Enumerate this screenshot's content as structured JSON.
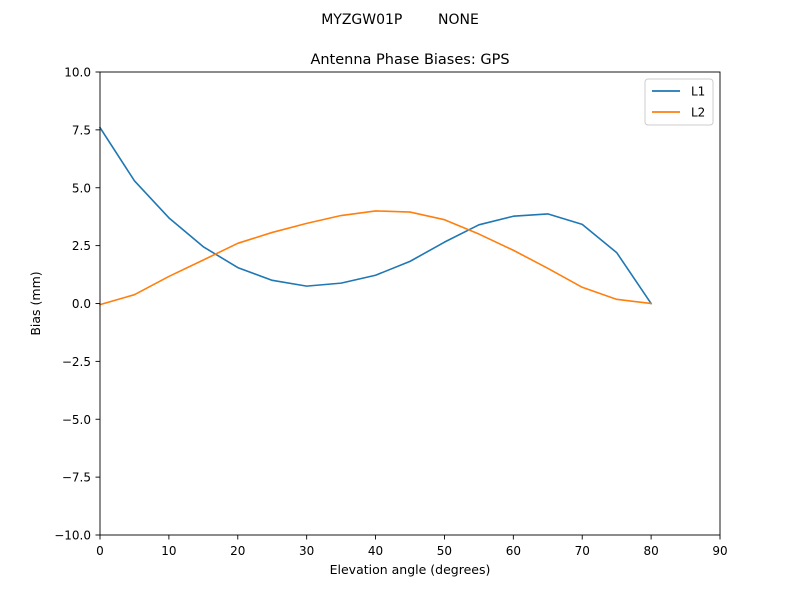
{
  "figure": {
    "suptitle": "MYZGW01P        NONE"
  },
  "chart_data": {
    "type": "line",
    "title": "Antenna Phase Biases: GPS",
    "xlabel": "Elevation angle (degrees)",
    "ylabel": "Bias (mm)",
    "xlim": [
      0,
      90
    ],
    "ylim": [
      -10,
      10
    ],
    "xticks": [
      0,
      10,
      20,
      30,
      40,
      50,
      60,
      70,
      80,
      90
    ],
    "xtick_labels": [
      "0",
      "10",
      "20",
      "30",
      "40",
      "50",
      "60",
      "70",
      "80",
      "90"
    ],
    "yticks": [
      -10,
      -7.5,
      -5,
      -2.5,
      0,
      2.5,
      5,
      7.5,
      10
    ],
    "ytick_labels": [
      "−10.0",
      "−7.5",
      "−5.0",
      "−2.5",
      "0.0",
      "2.5",
      "5.0",
      "7.5",
      "10.0"
    ],
    "grid": false,
    "legend_position": "top-right",
    "x": [
      0,
      5,
      10,
      15,
      20,
      25,
      30,
      35,
      40,
      45,
      50,
      55,
      60,
      65,
      70,
      75,
      80
    ],
    "series": [
      {
        "name": "L1",
        "color": "#1f77b4",
        "values": [
          7.6,
          5.3,
          3.7,
          2.45,
          1.55,
          1.0,
          0.75,
          0.88,
          1.22,
          1.82,
          2.65,
          3.4,
          3.77,
          3.87,
          3.42,
          2.2,
          0.0
        ]
      },
      {
        "name": "L2",
        "color": "#ff7f0e",
        "values": [
          -0.05,
          0.38,
          1.17,
          1.88,
          2.6,
          3.07,
          3.46,
          3.8,
          4.0,
          3.95,
          3.62,
          3.0,
          2.3,
          1.52,
          0.7,
          0.18,
          0.0
        ]
      }
    ]
  }
}
